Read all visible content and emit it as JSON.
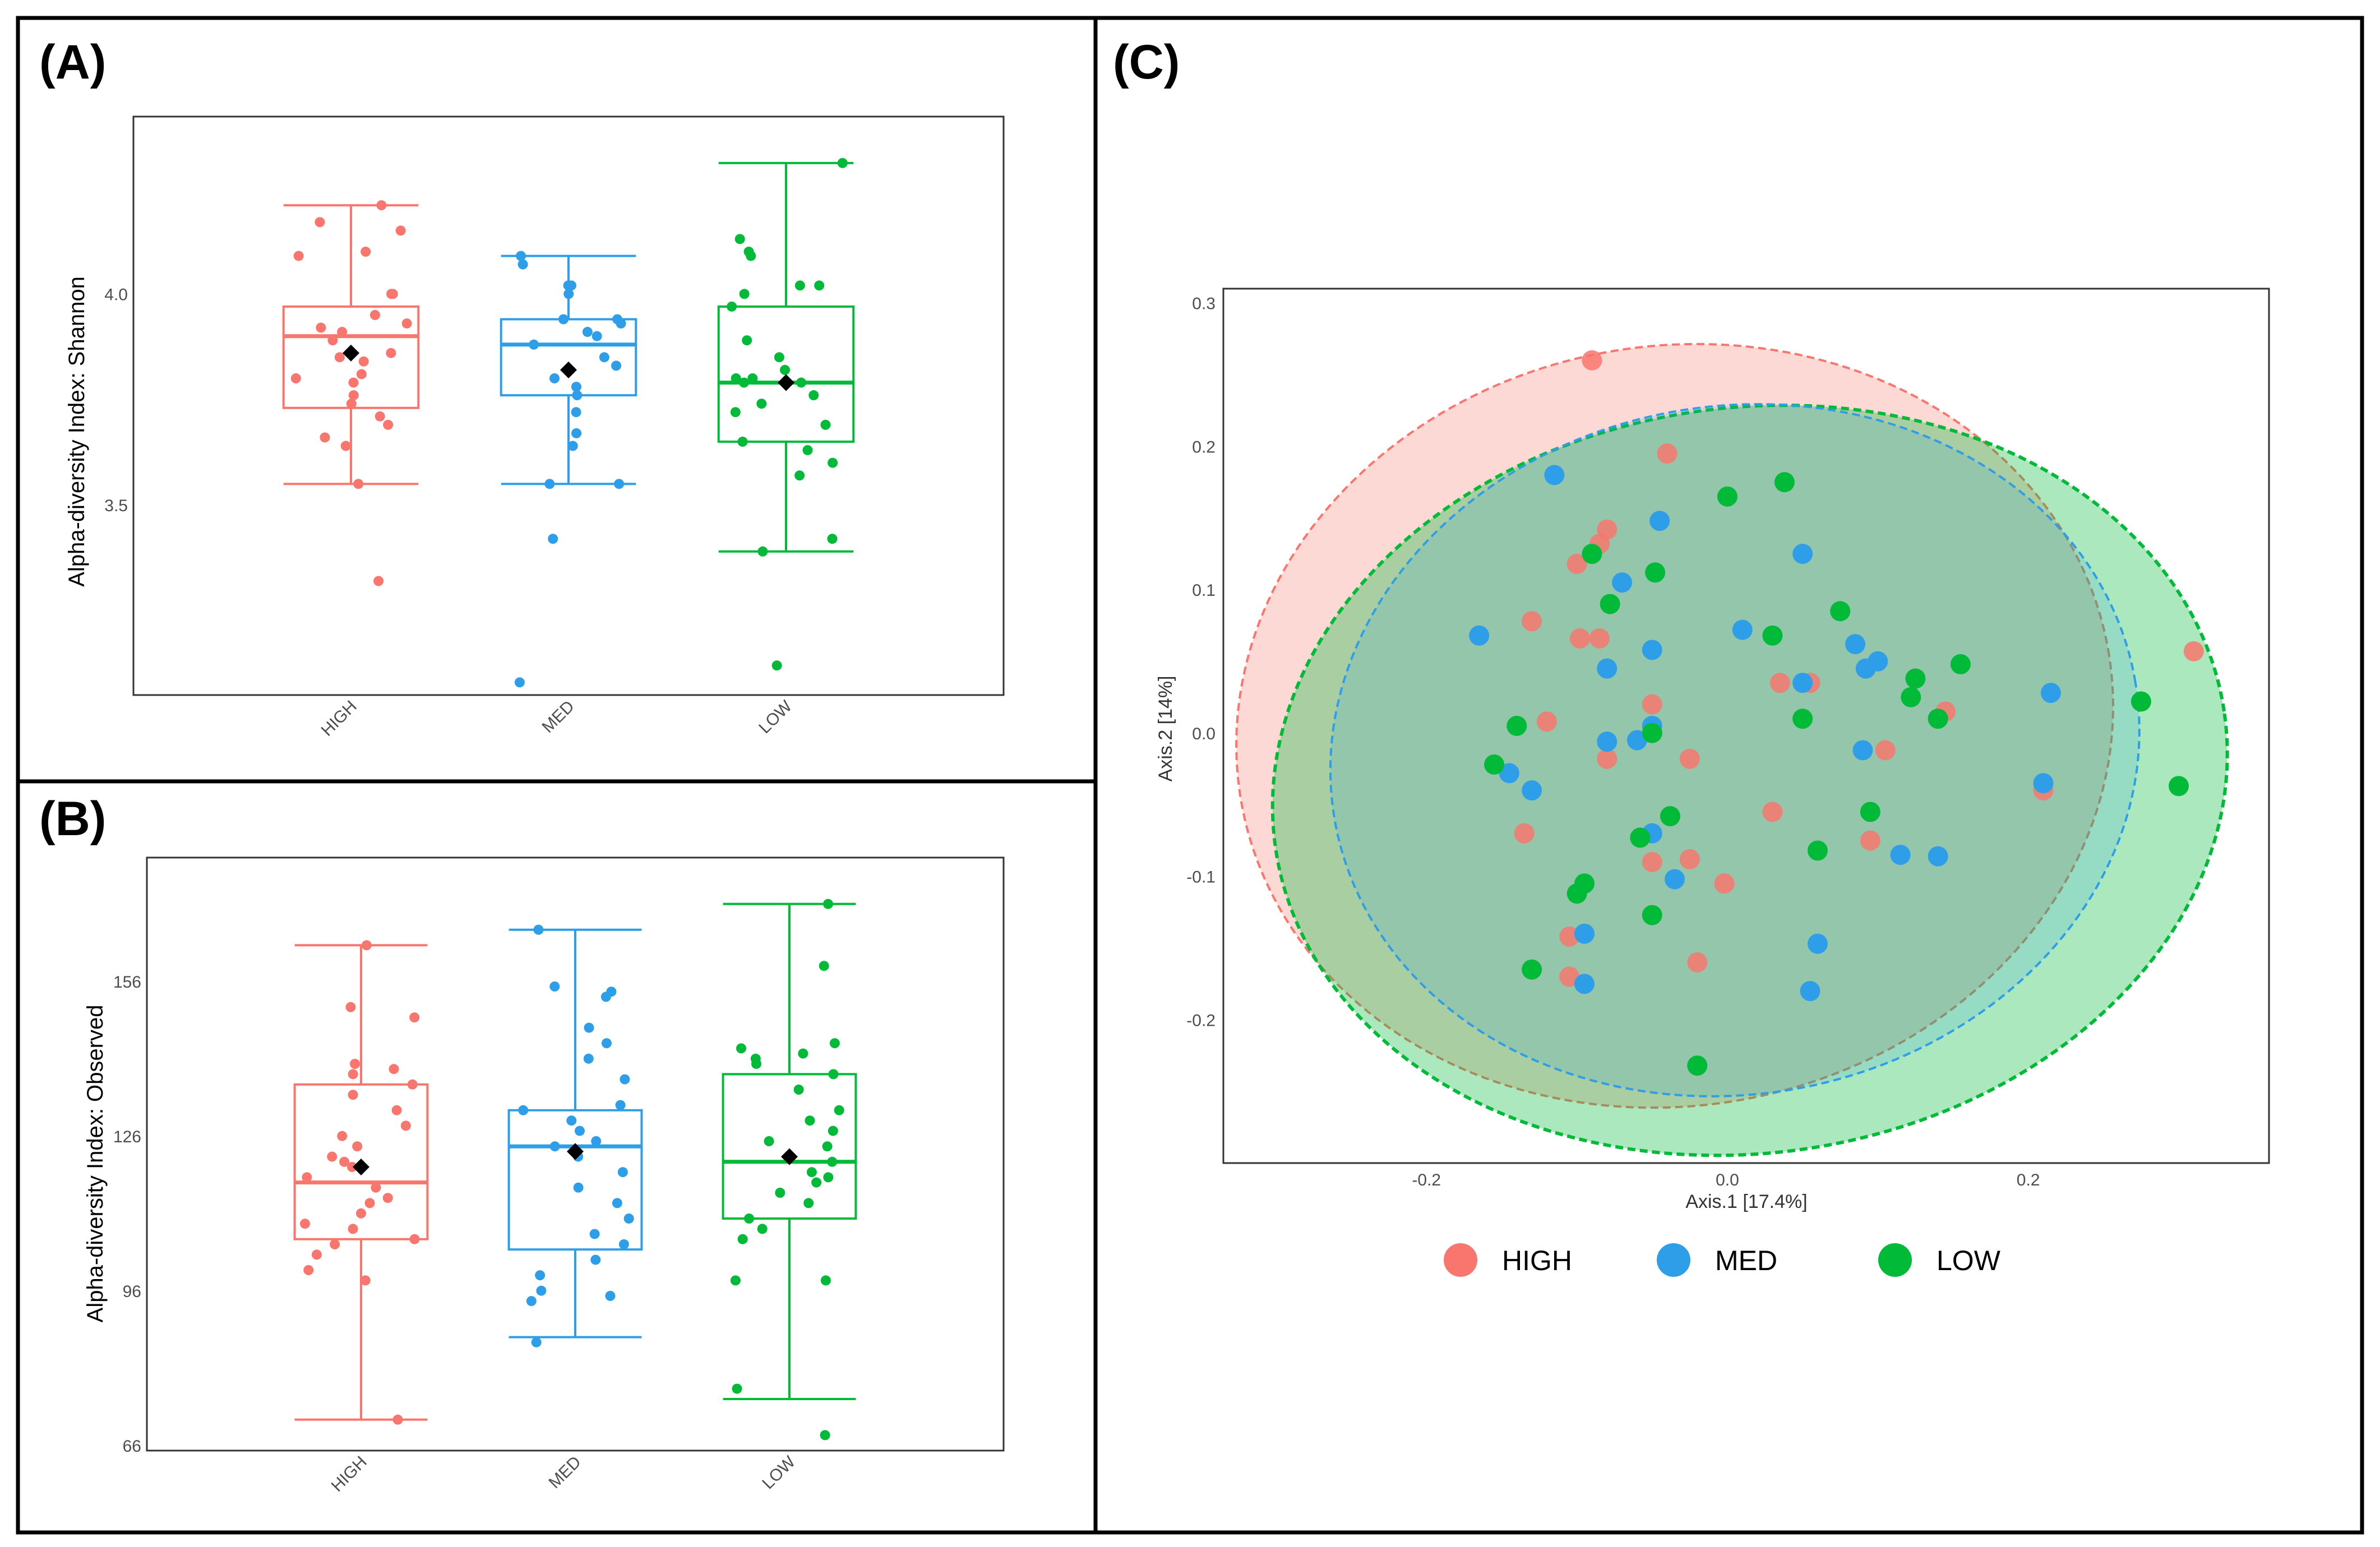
{
  "panels": [
    {
      "id": "A",
      "label": "(A)"
    },
    {
      "id": "B",
      "label": "(B)"
    },
    {
      "id": "C",
      "label": "(C)"
    }
  ],
  "colors": {
    "HIGH": "#f8766d",
    "MED": "#2e9ee8",
    "LOW": "#00ba38",
    "mean_marker": "#000000"
  },
  "chart_data": [
    {
      "id": "A",
      "type": "box",
      "title": "",
      "ylabel": "Alpha-diversity Index: Shannon",
      "xlabel": "",
      "categories": [
        "HIGH",
        "MED",
        "LOW"
      ],
      "ylim": [
        3.05,
        4.42
      ],
      "yticks": [
        3.5,
        4.0
      ],
      "ytick_labels": [
        "3.5",
        "4.0"
      ],
      "box_stats": [
        {
          "group": "HIGH",
          "whisker_low": 3.55,
          "q1": 3.73,
          "median": 3.9,
          "q3": 3.97,
          "whisker_high": 4.21,
          "mean": 3.86
        },
        {
          "group": "MED",
          "whisker_low": 3.55,
          "q1": 3.76,
          "median": 3.88,
          "q3": 3.94,
          "whisker_high": 4.09,
          "mean": 3.82
        },
        {
          "group": "LOW",
          "whisker_low": 3.39,
          "q1": 3.65,
          "median": 3.79,
          "q3": 3.97,
          "whisker_high": 4.31,
          "mean": 3.79
        }
      ],
      "points": {
        "HIGH": [
          3.32,
          3.55,
          3.64,
          3.66,
          3.69,
          3.71,
          3.74,
          3.76,
          3.79,
          3.8,
          3.81,
          3.84,
          3.85,
          3.86,
          3.89,
          3.91,
          3.92,
          3.93,
          3.95,
          4.0,
          4.0,
          4.09,
          4.1,
          4.15,
          4.17,
          4.21
        ],
        "MED": [
          3.08,
          3.42,
          3.55,
          3.55,
          3.64,
          3.67,
          3.72,
          3.76,
          3.78,
          3.8,
          3.83,
          3.85,
          3.88,
          3.9,
          3.91,
          3.93,
          3.94,
          3.94,
          4.0,
          4.02,
          4.02,
          4.07,
          4.09
        ],
        "LOW": [
          3.12,
          3.39,
          3.42,
          3.57,
          3.6,
          3.63,
          3.65,
          3.69,
          3.72,
          3.74,
          3.76,
          3.79,
          3.79,
          3.8,
          3.8,
          3.82,
          3.85,
          3.89,
          3.97,
          4.0,
          4.02,
          4.02,
          4.09,
          4.1,
          4.13,
          4.31
        ]
      }
    },
    {
      "id": "B",
      "type": "box",
      "title": "",
      "ylabel": "Alpha-diversity Index: Observed",
      "xlabel": "",
      "categories": [
        "HIGH",
        "MED",
        "LOW"
      ],
      "ylim": [
        65,
        180
      ],
      "yticks": [
        66,
        96,
        126,
        156
      ],
      "ytick_labels": [
        "66",
        "96",
        "126",
        "156"
      ],
      "box_stats": [
        {
          "group": "HIGH",
          "whisker_low": 71,
          "q1": 106,
          "median": 117,
          "q3": 136,
          "whisker_high": 163,
          "mean": 120
        },
        {
          "group": "MED",
          "whisker_low": 87,
          "q1": 104,
          "median": 124,
          "q3": 131,
          "whisker_high": 166,
          "mean": 123
        },
        {
          "group": "LOW",
          "whisker_low": 75,
          "q1": 110,
          "median": 121,
          "q3": 138,
          "whisker_high": 171,
          "mean": 122
        }
      ],
      "points": {
        "HIGH": [
          71,
          98,
          100,
          103,
          105,
          106,
          108,
          109,
          111,
          113,
          114,
          116,
          118,
          120,
          121,
          122,
          124,
          126,
          128,
          131,
          134,
          136,
          138,
          139,
          140,
          149,
          151,
          163
        ],
        "MED": [
          86,
          94,
          95,
          96,
          99,
          102,
          105,
          107,
          110,
          113,
          116,
          119,
          122,
          124,
          125,
          127,
          129,
          131,
          132,
          137,
          141,
          144,
          147,
          153,
          154,
          155,
          166
        ],
        "LOW": [
          68,
          77,
          98,
          98,
          106,
          108,
          110,
          113,
          115,
          117,
          118,
          119,
          121,
          122,
          124,
          125,
          127,
          129,
          131,
          135,
          138,
          140,
          141,
          142,
          143,
          144,
          159,
          171
        ]
      }
    },
    {
      "id": "C",
      "type": "scatter",
      "title": "",
      "xlabel": "Axis.1   [17.4%]",
      "ylabel": "Axis.2   [14%]",
      "xlim": [
        -0.335,
        0.36
      ],
      "ylim": [
        -0.3,
        0.31
      ],
      "xticks": [
        -0.2,
        0.0,
        0.2
      ],
      "xtick_labels": [
        "-0.2",
        "0.0",
        "0.2"
      ],
      "yticks": [
        -0.2,
        -0.1,
        0.0,
        0.1,
        0.2,
        0.3
      ],
      "ytick_labels": [
        "-0.2",
        "-0.1",
        "0.0",
        "0.1",
        "0.2",
        "0.3"
      ],
      "legend": {
        "position": "bottom",
        "entries": [
          "HIGH",
          "MED",
          "LOW"
        ]
      },
      "series": [
        {
          "name": "HIGH",
          "ellipse": {
            "center": [
              -0.035,
              0.005
            ],
            "semi_axes": [
              0.2925,
              0.265
            ],
            "angle_deg": -10
          },
          "points": [
            [
              -0.09,
              0.26
            ],
            [
              -0.04,
              0.195
            ],
            [
              -0.08,
              0.142
            ],
            [
              -0.085,
              0.132
            ],
            [
              -0.1,
              0.118
            ],
            [
              -0.13,
              0.078
            ],
            [
              -0.085,
              0.066
            ],
            [
              -0.098,
              0.066
            ],
            [
              -0.12,
              0.008
            ],
            [
              -0.08,
              -0.018
            ],
            [
              -0.05,
              0.02
            ],
            [
              -0.025,
              -0.018
            ],
            [
              -0.135,
              -0.07
            ],
            [
              -0.05,
              -0.09
            ],
            [
              -0.025,
              -0.088
            ],
            [
              -0.002,
              -0.105
            ],
            [
              -0.105,
              -0.142
            ],
            [
              -0.105,
              -0.17
            ],
            [
              -0.02,
              -0.16
            ],
            [
              0.035,
              0.035
            ],
            [
              0.055,
              0.035
            ],
            [
              0.03,
              -0.055
            ],
            [
              0.095,
              -0.075
            ],
            [
              0.105,
              -0.012
            ],
            [
              0.145,
              0.015
            ],
            [
              0.21,
              -0.04
            ],
            [
              0.31,
              0.057
            ]
          ]
        },
        {
          "name": "MED",
          "ellipse": {
            "center": [
              0.005,
              -0.012
            ],
            "semi_axes": [
              0.27,
              0.24
            ],
            "angle_deg": -10
          },
          "points": [
            [
              -0.115,
              0.18
            ],
            [
              -0.045,
              0.148
            ],
            [
              -0.07,
              0.105
            ],
            [
              -0.165,
              0.068
            ],
            [
              -0.08,
              0.045
            ],
            [
              -0.05,
              0.058
            ],
            [
              -0.145,
              -0.028
            ],
            [
              -0.13,
              -0.04
            ],
            [
              -0.08,
              -0.006
            ],
            [
              -0.06,
              -0.005
            ],
            [
              -0.05,
              0.005
            ],
            [
              -0.05,
              -0.07
            ],
            [
              -0.035,
              -0.102
            ],
            [
              -0.095,
              -0.14
            ],
            [
              -0.095,
              -0.175
            ],
            [
              0.01,
              0.072
            ],
            [
              0.05,
              0.125
            ],
            [
              0.05,
              0.035
            ],
            [
              0.085,
              0.062
            ],
            [
              0.092,
              0.045
            ],
            [
              0.1,
              0.05
            ],
            [
              0.09,
              -0.012
            ],
            [
              0.115,
              -0.085
            ],
            [
              0.14,
              -0.086
            ],
            [
              0.06,
              -0.147
            ],
            [
              0.055,
              -0.18
            ],
            [
              0.215,
              0.028
            ],
            [
              0.21,
              -0.035
            ]
          ]
        },
        {
          "name": "LOW",
          "ellipse": {
            "center": [
              0.015,
              -0.033
            ],
            "semi_axes": [
              0.3185,
              0.26
            ],
            "angle_deg": -8
          },
          "points": [
            [
              0.0,
              0.165
            ],
            [
              0.038,
              0.175
            ],
            [
              -0.09,
              0.125
            ],
            [
              -0.048,
              0.112
            ],
            [
              -0.078,
              0.09
            ],
            [
              -0.14,
              0.005
            ],
            [
              -0.155,
              -0.022
            ],
            [
              -0.05,
              0.0
            ],
            [
              -0.038,
              -0.058
            ],
            [
              -0.058,
              -0.073
            ],
            [
              -0.095,
              -0.105
            ],
            [
              -0.1,
              -0.112
            ],
            [
              -0.05,
              -0.127
            ],
            [
              -0.13,
              -0.165
            ],
            [
              -0.02,
              -0.232
            ],
            [
              0.03,
              0.068
            ],
            [
              0.075,
              0.085
            ],
            [
              0.05,
              0.01
            ],
            [
              0.06,
              -0.082
            ],
            [
              0.095,
              -0.055
            ],
            [
              0.125,
              0.038
            ],
            [
              0.122,
              0.025
            ],
            [
              0.14,
              0.01
            ],
            [
              0.155,
              0.048
            ],
            [
              0.275,
              0.022
            ],
            [
              0.3,
              -0.037
            ]
          ]
        }
      ]
    }
  ]
}
